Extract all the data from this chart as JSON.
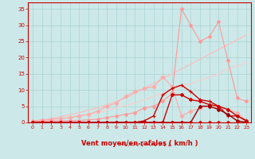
{
  "x": [
    0,
    1,
    2,
    3,
    4,
    5,
    6,
    7,
    8,
    9,
    10,
    11,
    12,
    13,
    14,
    15,
    16,
    17,
    18,
    19,
    20,
    21,
    22,
    23
  ],
  "line_straight1": [
    0,
    0.4,
    0.8,
    1.2,
    1.6,
    2.0,
    2.5,
    3.0,
    3.8,
    4.5,
    5.2,
    6.0,
    7.0,
    8.0,
    9.0,
    10.0,
    11.0,
    12.0,
    13.0,
    14.0,
    15.0,
    16.5,
    17.5,
    18.5
  ],
  "line_straight2": [
    0,
    0.6,
    1.2,
    1.8,
    2.4,
    3.0,
    3.8,
    4.5,
    5.5,
    6.5,
    7.5,
    9.0,
    10.5,
    12.0,
    13.5,
    15.0,
    16.5,
    18.0,
    19.5,
    21.0,
    22.5,
    24.0,
    25.5,
    27.0
  ],
  "line_wavy_lo": [
    0.5,
    0.8,
    1.0,
    1.2,
    1.5,
    2.0,
    2.5,
    3.5,
    5.0,
    6.0,
    8.0,
    9.5,
    10.5,
    11.0,
    14.0,
    11.0,
    2.0,
    3.5,
    4.5,
    5.0,
    4.5,
    4.0,
    3.0,
    0.5
  ],
  "line_spike": [
    0.3,
    0.4,
    0.5,
    0.5,
    0.6,
    0.6,
    0.8,
    1.0,
    1.5,
    2.0,
    2.5,
    3.0,
    4.5,
    5.0,
    6.5,
    9.0,
    35.0,
    30.0,
    25.0,
    26.5,
    31.0,
    19.0,
    7.5,
    6.5
  ],
  "line_mid_lo": [
    0,
    0,
    0,
    0,
    0,
    0,
    0,
    0,
    0,
    0,
    0,
    0,
    0.5,
    2.0,
    8.5,
    10.5,
    11.5,
    9.5,
    7.0,
    6.5,
    5.0,
    2.0,
    2.0,
    0.5
  ],
  "line_mid_hi": [
    0,
    0,
    0,
    0,
    0,
    0,
    0,
    0,
    0,
    0,
    0,
    0,
    0,
    0,
    0,
    8.5,
    8.5,
    7.0,
    6.5,
    5.5,
    5.0,
    4.0,
    2.0,
    0.5
  ],
  "line_dark_lo": [
    0,
    0,
    0,
    0,
    0,
    0,
    0,
    0,
    0,
    0,
    0,
    0,
    0,
    0,
    0,
    0,
    0,
    0,
    5.0,
    5.0,
    4.0,
    2.5,
    0.5,
    0
  ],
  "line_flat": [
    0,
    0,
    0,
    0,
    0,
    0,
    0,
    0,
    0,
    0,
    0,
    0,
    0,
    0,
    0,
    0,
    0,
    0,
    0,
    0,
    0,
    0,
    0,
    0
  ],
  "bg_color": "#cce8e8",
  "grid_color": "#aad4d4",
  "red_dark": "#cc0000",
  "red_med": "#ff6666",
  "red_light": "#ffaaaa",
  "red_lighter": "#ffcccc",
  "red_vlight": "#ffd8d8",
  "xlabel": "Vent moyen/en rafales ( km/h )",
  "yticks": [
    0,
    5,
    10,
    15,
    20,
    25,
    30,
    35
  ],
  "xticks": [
    0,
    1,
    2,
    3,
    4,
    5,
    6,
    7,
    8,
    9,
    10,
    11,
    12,
    13,
    14,
    15,
    16,
    17,
    18,
    19,
    20,
    21,
    22,
    23
  ],
  "arrows": "→↘↗↗↗↙→↗↙↗↓↓"
}
